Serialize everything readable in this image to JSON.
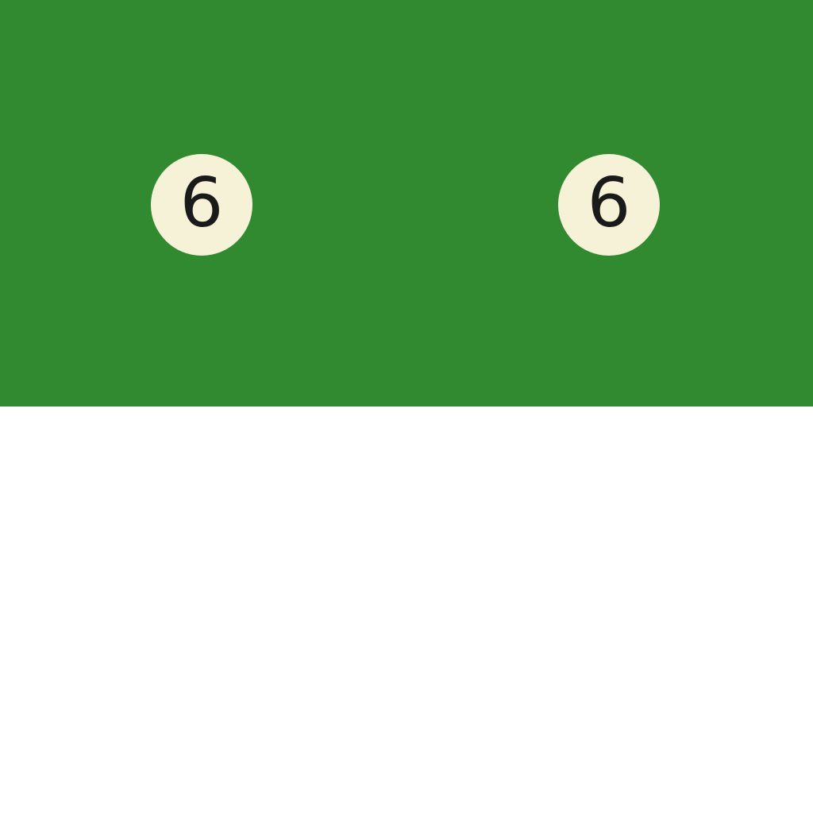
{
  "colors": {
    "felt": "#328a30",
    "ball_face": "#f5f2d8",
    "ball_number": "#1a1a1a",
    "background": "#ffffff"
  },
  "balls": [
    {
      "number": "6"
    },
    {
      "number": "6"
    }
  ]
}
